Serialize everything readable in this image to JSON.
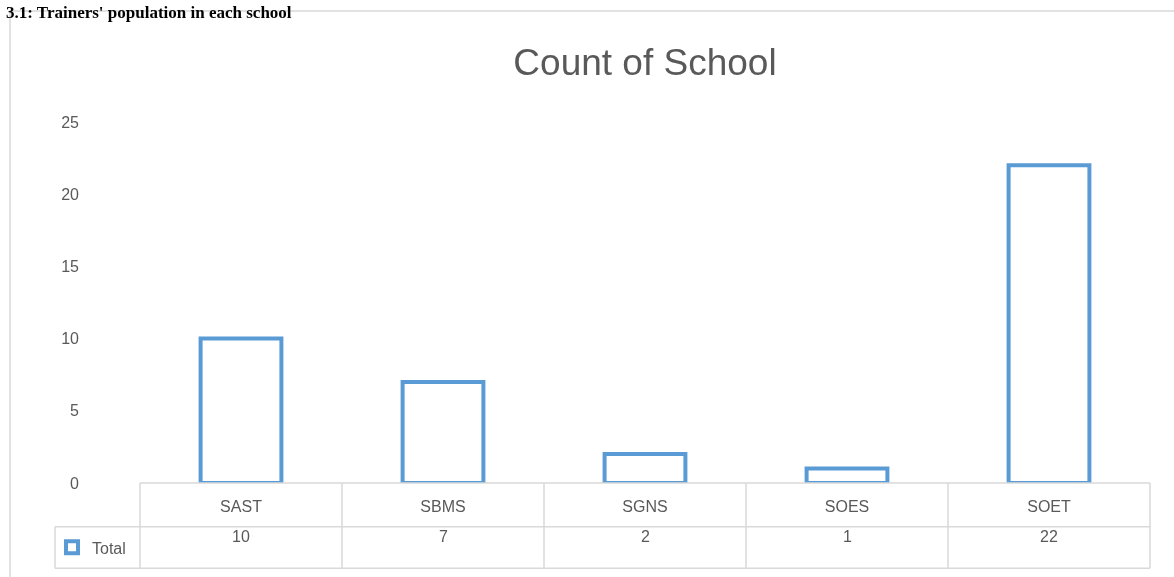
{
  "chart_data": {
    "type": "bar",
    "title": "Count of School",
    "annotations": [
      "3.1: Trainers' population in each school"
    ],
    "categories": [
      "SAST",
      "SBMS",
      "SGNS",
      "SOES",
      "SOET"
    ],
    "series": [
      {
        "name": "Total",
        "color": "#5b9bd5",
        "values": [
          10,
          7,
          2,
          1,
          22
        ]
      }
    ],
    "ylim": [
      0,
      25
    ],
    "yticks": [
      0,
      5,
      10,
      15,
      20,
      25
    ],
    "data_labels": true,
    "legend": "bottom left",
    "grid": false
  }
}
